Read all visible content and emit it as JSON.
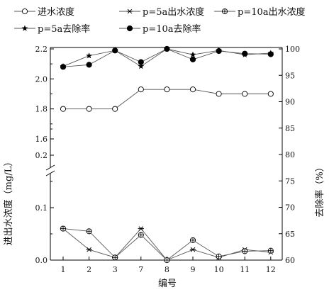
{
  "chart_data": {
    "type": "line",
    "categories": [
      "1",
      "2",
      "3",
      "7",
      "8",
      "9",
      "10",
      "11",
      "12"
    ],
    "xlabel": "编号",
    "ylabel_left": "进出水浓度（mg/L）",
    "ylabel_right": "去除率（%）",
    "left_axis_lower": {
      "ylim": [
        0.0,
        0.2
      ],
      "ticks": [
        "0.0",
        "0.1",
        "0.2"
      ]
    },
    "left_axis_upper": {
      "ylim": [
        1.5,
        2.2
      ],
      "ticks": [
        "1.6",
        "1.8",
        "2.0",
        "2.2"
      ]
    },
    "right_axis": {
      "ylim": [
        60,
        100
      ],
      "ticks": [
        "60",
        "65",
        "70",
        "75",
        "80",
        "85",
        "90",
        "95",
        "100"
      ]
    },
    "axis_break": true,
    "legend_position": "top",
    "series": [
      {
        "name": "进水浓度",
        "axis": "left",
        "marker": "open-circle",
        "values": [
          1.8,
          1.8,
          1.8,
          1.93,
          1.93,
          1.93,
          1.9,
          1.9,
          1.9
        ]
      },
      {
        "name": "p=5a出水浓度",
        "axis": "left",
        "marker": "asterisk",
        "values": [
          0.06,
          0.02,
          0.005,
          0.06,
          0.0,
          0.02,
          0.005,
          0.02,
          0.015
        ]
      },
      {
        "name": "p=10a出水浓度",
        "axis": "left",
        "marker": "circle-plus",
        "values": [
          0.06,
          0.055,
          0.005,
          0.048,
          0.0,
          0.038,
          0.007,
          0.017,
          0.018
        ]
      },
      {
        "name": "p=5a去除率",
        "axis": "right",
        "marker": "filled-star",
        "values": [
          96.7,
          98.7,
          99.7,
          96.7,
          100.0,
          98.9,
          99.7,
          98.9,
          99.2
        ]
      },
      {
        "name": "p=10a去除率",
        "axis": "right",
        "marker": "filled-circle",
        "values": [
          96.6,
          97.0,
          99.7,
          97.5,
          100.0,
          98.0,
          99.6,
          99.1,
          99.0
        ]
      }
    ]
  }
}
